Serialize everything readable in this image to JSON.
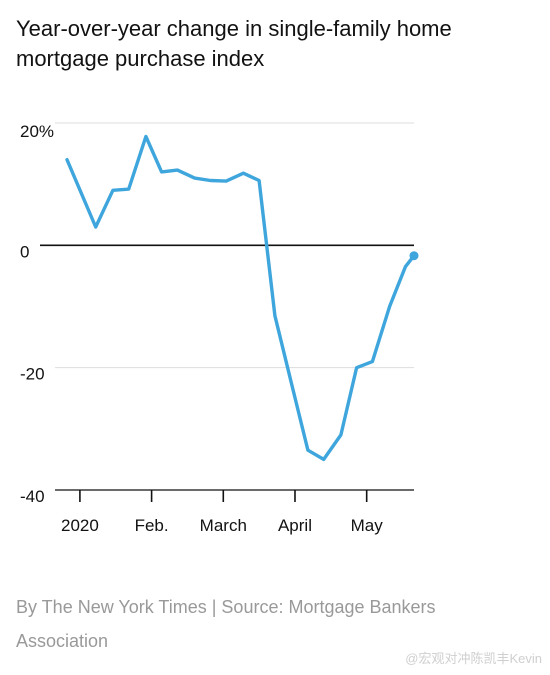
{
  "title": "Year-over-year change in single-family home mortgage purchase index",
  "credit": "By The New York Times | Source: Mortgage Bankers Association",
  "watermark": "@宏观对冲陈凯丰Kevin",
  "colors": {
    "line": "#3ea6dc",
    "zero": "#121212",
    "grid": "#dddddd",
    "axis": "#121212"
  },
  "chart_data": {
    "type": "line",
    "title": "Year-over-year change in single-family home mortgage purchase index",
    "xlabel": "",
    "ylabel": "",
    "unit": "%",
    "ylim": [
      -40,
      20
    ],
    "yticks": [
      {
        "value": 20,
        "label": "20%"
      },
      {
        "value": 0,
        "label": "0"
      },
      {
        "value": -20,
        "label": "-20"
      },
      {
        "value": -40,
        "label": "-40"
      }
    ],
    "xticks": [
      {
        "week": 1,
        "label": "2020"
      },
      {
        "week": 6,
        "label": "Feb."
      },
      {
        "week": 11,
        "label": "March"
      },
      {
        "week": 16,
        "label": "April"
      },
      {
        "week": 21,
        "label": "May"
      }
    ],
    "x_range": [
      0.1,
      24.3
    ],
    "grid": "horizontal",
    "series": [
      {
        "x": [
          0.1,
          2.1,
          3.3,
          4.4,
          5.6,
          6.7,
          7.8,
          9.0,
          10.1,
          11.2,
          12.4,
          13.5,
          14.6,
          15.8,
          16.9,
          18.0,
          19.2,
          20.3,
          21.4,
          22.6,
          23.7,
          24.3
        ],
        "values": [
          14.0,
          3.0,
          9.0,
          9.2,
          17.8,
          12.0,
          12.3,
          11.0,
          10.6,
          10.5,
          11.8,
          10.6,
          -11.5,
          -23.0,
          -33.5,
          -35.0,
          -31.0,
          -20.0,
          -19.0,
          -10.0,
          -3.5,
          -1.7
        ]
      }
    ]
  }
}
